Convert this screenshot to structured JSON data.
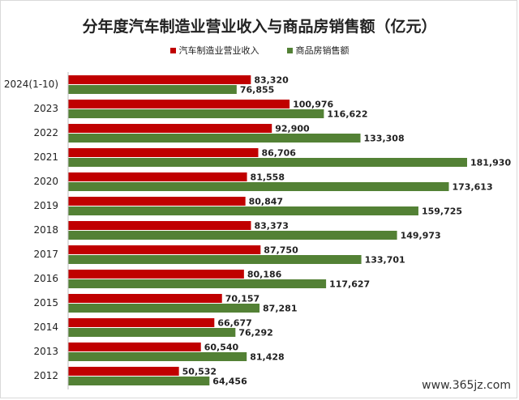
{
  "chart_data": {
    "type": "bar",
    "orientation": "horizontal",
    "title": "分年度汽车制造业营业收入与商品房销售额（亿元）",
    "categories": [
      "2024(1-10)",
      "2023",
      "2022",
      "2021",
      "2020",
      "2019",
      "2018",
      "2017",
      "2016",
      "2015",
      "2014",
      "2013",
      "2012"
    ],
    "series": [
      {
        "name": "汽车制造业营业收入",
        "color": "#c00000",
        "values": [
          83320,
          100976,
          92900,
          86706,
          81558,
          80847,
          83373,
          87750,
          80186,
          70157,
          66677,
          60540,
          50532
        ],
        "labels": [
          "83,320",
          "100,976",
          "92,900",
          "86,706",
          "81,558",
          "80,847",
          "83,373",
          "87,750",
          "80,186",
          "70,157",
          "66,677",
          "60,540",
          "50,532"
        ]
      },
      {
        "name": "商品房销售额",
        "color": "#538135",
        "values": [
          76855,
          116622,
          133308,
          181930,
          173613,
          159725,
          149973,
          133701,
          117627,
          87281,
          76292,
          81428,
          64456
        ],
        "labels": [
          "76,855",
          "116,622",
          "133,308",
          "181,930",
          "173,613",
          "159,725",
          "149,973",
          "133,701",
          "117,627",
          "87,281",
          "76,292",
          "81,428",
          "64,456"
        ]
      }
    ],
    "xlim": [
      0,
      181930
    ],
    "legend_position": "top",
    "grid": false
  },
  "watermark": "www.365jz.com"
}
